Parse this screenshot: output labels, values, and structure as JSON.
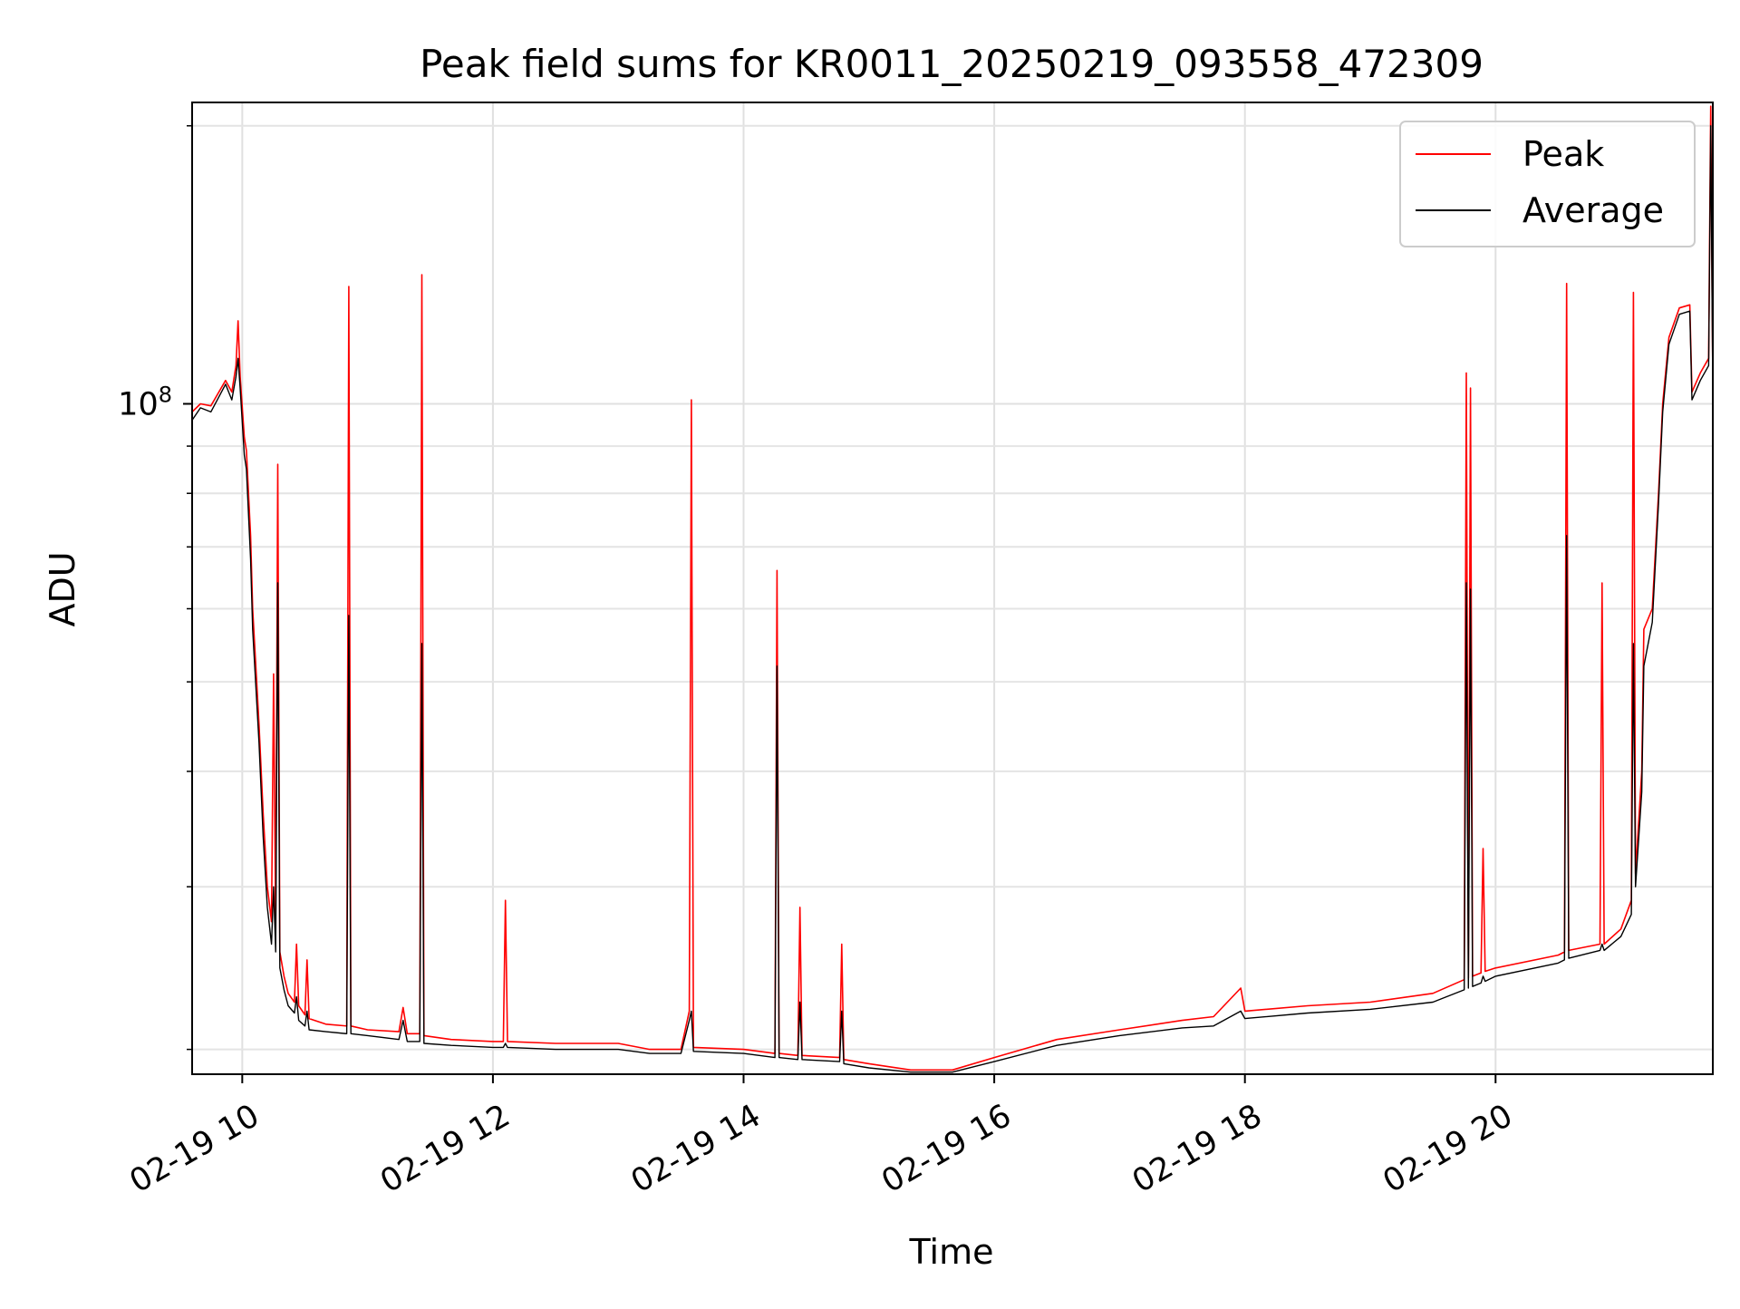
{
  "chart_data": {
    "type": "line",
    "title": "Peak field sums for KR0011_20250219_093558_472309",
    "xlabel": "Time",
    "ylabel": "ADU",
    "y_scale": "log",
    "ylim": [
      18800000,
      212000000
    ],
    "xlim": [
      "2025-02-19 09:36",
      "2025-02-19 21:44"
    ],
    "x_ticks": [
      "2025-02-19 10:00",
      "2025-02-19 12:00",
      "2025-02-19 14:00",
      "2025-02-19 16:00",
      "2025-02-19 18:00",
      "2025-02-19 20:00"
    ],
    "x_tick_labels": [
      "02-19 10",
      "02-19 12",
      "02-19 14",
      "02-19 16",
      "02-19 18",
      "02-19 20"
    ],
    "y_major_tick_labels": [
      {
        "value": 100000000,
        "base": "10",
        "exp": "8"
      }
    ],
    "y_minor_ticks": [
      20000000,
      30000000,
      40000000,
      50000000,
      60000000,
      70000000,
      80000000,
      90000000,
      200000000
    ],
    "grid": true,
    "legend_position": "upper right",
    "series": [
      {
        "name": "Peak",
        "color": "#ff0000",
        "points": [
          [
            "2025-02-19 09:36",
            98000000
          ],
          [
            "2025-02-19 09:40",
            100000000
          ],
          [
            "2025-02-19 09:45",
            99500000
          ],
          [
            "2025-02-19 09:52",
            106000000
          ],
          [
            "2025-02-19 09:55",
            103000000
          ],
          [
            "2025-02-19 09:57",
            110000000
          ],
          [
            "2025-02-19 09:58",
            123000000
          ],
          [
            "2025-02-19 09:59",
            107000000
          ],
          [
            "2025-02-19 10:01",
            92000000
          ],
          [
            "2025-02-19 10:02",
            89000000
          ],
          [
            "2025-02-19 10:04",
            72000000
          ],
          [
            "2025-02-19 10:05",
            60000000
          ],
          [
            "2025-02-19 10:08",
            45000000
          ],
          [
            "2025-02-19 10:10",
            36000000
          ],
          [
            "2025-02-19 10:12",
            30000000
          ],
          [
            "2025-02-19 10:14",
            27500000
          ],
          [
            "2025-02-19 10:15",
            51000000
          ],
          [
            "2025-02-19 10:16",
            27000000
          ],
          [
            "2025-02-19 10:17",
            86000000
          ],
          [
            "2025-02-19 10:18",
            25500000
          ],
          [
            "2025-02-19 10:20",
            24000000
          ],
          [
            "2025-02-19 10:22",
            23000000
          ],
          [
            "2025-02-19 10:25",
            22500000
          ],
          [
            "2025-02-19 10:26",
            26000000
          ],
          [
            "2025-02-19 10:27",
            22300000
          ],
          [
            "2025-02-19 10:30",
            21800000
          ],
          [
            "2025-02-19 10:31",
            25000000
          ],
          [
            "2025-02-19 10:32",
            21600000
          ],
          [
            "2025-02-19 10:40",
            21300000
          ],
          [
            "2025-02-19 10:50",
            21200000
          ],
          [
            "2025-02-19 10:51",
            134000000
          ],
          [
            "2025-02-19 10:52",
            21200000
          ],
          [
            "2025-02-19 11:00",
            21000000
          ],
          [
            "2025-02-19 11:15",
            20900000
          ],
          [
            "2025-02-19 11:17",
            22200000
          ],
          [
            "2025-02-19 11:19",
            20800000
          ],
          [
            "2025-02-19 11:25",
            20800000
          ],
          [
            "2025-02-19 11:26",
            138000000
          ],
          [
            "2025-02-19 11:27",
            20700000
          ],
          [
            "2025-02-19 11:40",
            20500000
          ],
          [
            "2025-02-19 12:00",
            20400000
          ],
          [
            "2025-02-19 12:05",
            20400000
          ],
          [
            "2025-02-19 12:06",
            29000000
          ],
          [
            "2025-02-19 12:07",
            20400000
          ],
          [
            "2025-02-19 12:30",
            20300000
          ],
          [
            "2025-02-19 13:00",
            20300000
          ],
          [
            "2025-02-19 13:15",
            20000000
          ],
          [
            "2025-02-19 13:30",
            20000000
          ],
          [
            "2025-02-19 13:34",
            22000000
          ],
          [
            "2025-02-19 13:35",
            101000000
          ],
          [
            "2025-02-19 13:36",
            20100000
          ],
          [
            "2025-02-19 14:00",
            20000000
          ],
          [
            "2025-02-19 14:15",
            19800000
          ],
          [
            "2025-02-19 14:16",
            66000000
          ],
          [
            "2025-02-19 14:17",
            19800000
          ],
          [
            "2025-02-19 14:26",
            19700000
          ],
          [
            "2025-02-19 14:27",
            28500000
          ],
          [
            "2025-02-19 14:28",
            19700000
          ],
          [
            "2025-02-19 14:46",
            19600000
          ],
          [
            "2025-02-19 14:47",
            26000000
          ],
          [
            "2025-02-19 14:48",
            19500000
          ],
          [
            "2025-02-19 15:00",
            19300000
          ],
          [
            "2025-02-19 15:20",
            19000000
          ],
          [
            "2025-02-19 15:40",
            19000000
          ],
          [
            "2025-02-19 16:00",
            19600000
          ],
          [
            "2025-02-19 16:30",
            20500000
          ],
          [
            "2025-02-19 17:00",
            21000000
          ],
          [
            "2025-02-19 17:30",
            21500000
          ],
          [
            "2025-02-19 17:45",
            21700000
          ],
          [
            "2025-02-19 17:58",
            23300000
          ],
          [
            "2025-02-19 18:00",
            22000000
          ],
          [
            "2025-02-19 18:30",
            22300000
          ],
          [
            "2025-02-19 19:00",
            22500000
          ],
          [
            "2025-02-19 19:30",
            23000000
          ],
          [
            "2025-02-19 19:45",
            23800000
          ],
          [
            "2025-02-19 19:46",
            108000000
          ],
          [
            "2025-02-19 19:47",
            23900000
          ],
          [
            "2025-02-19 19:48",
            104000000
          ],
          [
            "2025-02-19 19:49",
            24000000
          ],
          [
            "2025-02-19 19:53",
            24200000
          ],
          [
            "2025-02-19 19:54",
            33000000
          ],
          [
            "2025-02-19 19:55",
            24300000
          ],
          [
            "2025-02-19 20:00",
            24500000
          ],
          [
            "2025-02-19 20:30",
            25300000
          ],
          [
            "2025-02-19 20:33",
            25500000
          ],
          [
            "2025-02-19 20:34",
            135000000
          ],
          [
            "2025-02-19 20:35",
            25600000
          ],
          [
            "2025-02-19 20:50",
            26000000
          ],
          [
            "2025-02-19 20:51",
            64000000
          ],
          [
            "2025-02-19 20:52",
            26000000
          ],
          [
            "2025-02-19 21:00",
            27000000
          ],
          [
            "2025-02-19 21:05",
            29000000
          ],
          [
            "2025-02-19 21:06",
            132000000
          ],
          [
            "2025-02-19 21:07",
            31000000
          ],
          [
            "2025-02-19 21:10",
            40000000
          ],
          [
            "2025-02-19 21:11",
            57000000
          ],
          [
            "2025-02-19 21:15",
            60000000
          ],
          [
            "2025-02-19 21:18",
            80000000
          ],
          [
            "2025-02-19 21:20",
            100000000
          ],
          [
            "2025-02-19 21:23",
            118000000
          ],
          [
            "2025-02-19 21:28",
            127000000
          ],
          [
            "2025-02-19 21:33",
            128000000
          ],
          [
            "2025-02-19 21:34",
            103000000
          ],
          [
            "2025-02-19 21:38",
            108000000
          ],
          [
            "2025-02-19 21:42",
            112000000
          ],
          [
            "2025-02-19 21:43",
            210000000
          ],
          [
            "2025-02-19 21:44",
            105000000
          ]
        ]
      },
      {
        "name": "Average",
        "color": "#000000",
        "points": [
          [
            "2025-02-19 09:36",
            96000000
          ],
          [
            "2025-02-19 09:40",
            99000000
          ],
          [
            "2025-02-19 09:45",
            98000000
          ],
          [
            "2025-02-19 09:52",
            105000000
          ],
          [
            "2025-02-19 09:55",
            101000000
          ],
          [
            "2025-02-19 09:57",
            107000000
          ],
          [
            "2025-02-19 09:58",
            112000000
          ],
          [
            "2025-02-19 09:59",
            104000000
          ],
          [
            "2025-02-19 10:01",
            88000000
          ],
          [
            "2025-02-19 10:02",
            85000000
          ],
          [
            "2025-02-19 10:04",
            68000000
          ],
          [
            "2025-02-19 10:05",
            57000000
          ],
          [
            "2025-02-19 10:08",
            43000000
          ],
          [
            "2025-02-19 10:10",
            34000000
          ],
          [
            "2025-02-19 10:12",
            28500000
          ],
          [
            "2025-02-19 10:14",
            26000000
          ],
          [
            "2025-02-19 10:15",
            30000000
          ],
          [
            "2025-02-19 10:16",
            25500000
          ],
          [
            "2025-02-19 10:17",
            64000000
          ],
          [
            "2025-02-19 10:18",
            24500000
          ],
          [
            "2025-02-19 10:20",
            23200000
          ],
          [
            "2025-02-19 10:22",
            22300000
          ],
          [
            "2025-02-19 10:25",
            21900000
          ],
          [
            "2025-02-19 10:26",
            22800000
          ],
          [
            "2025-02-19 10:27",
            21500000
          ],
          [
            "2025-02-19 10:30",
            21200000
          ],
          [
            "2025-02-19 10:31",
            22000000
          ],
          [
            "2025-02-19 10:32",
            21000000
          ],
          [
            "2025-02-19 10:40",
            20900000
          ],
          [
            "2025-02-19 10:50",
            20800000
          ],
          [
            "2025-02-19 10:51",
            59000000
          ],
          [
            "2025-02-19 10:52",
            20800000
          ],
          [
            "2025-02-19 11:00",
            20700000
          ],
          [
            "2025-02-19 11:15",
            20500000
          ],
          [
            "2025-02-19 11:17",
            21500000
          ],
          [
            "2025-02-19 11:19",
            20400000
          ],
          [
            "2025-02-19 11:25",
            20400000
          ],
          [
            "2025-02-19 11:26",
            55000000
          ],
          [
            "2025-02-19 11:27",
            20300000
          ],
          [
            "2025-02-19 11:40",
            20200000
          ],
          [
            "2025-02-19 12:00",
            20100000
          ],
          [
            "2025-02-19 12:05",
            20100000
          ],
          [
            "2025-02-19 12:06",
            20300000
          ],
          [
            "2025-02-19 12:07",
            20100000
          ],
          [
            "2025-02-19 12:30",
            20000000
          ],
          [
            "2025-02-19 13:00",
            20000000
          ],
          [
            "2025-02-19 13:15",
            19800000
          ],
          [
            "2025-02-19 13:30",
            19800000
          ],
          [
            "2025-02-19 13:34",
            21500000
          ],
          [
            "2025-02-19 13:35",
            22000000
          ],
          [
            "2025-02-19 13:36",
            19900000
          ],
          [
            "2025-02-19 14:00",
            19800000
          ],
          [
            "2025-02-19 14:15",
            19600000
          ],
          [
            "2025-02-19 14:16",
            52000000
          ],
          [
            "2025-02-19 14:17",
            19600000
          ],
          [
            "2025-02-19 14:26",
            19500000
          ],
          [
            "2025-02-19 14:27",
            22500000
          ],
          [
            "2025-02-19 14:28",
            19500000
          ],
          [
            "2025-02-19 14:46",
            19400000
          ],
          [
            "2025-02-19 14:47",
            22000000
          ],
          [
            "2025-02-19 14:48",
            19300000
          ],
          [
            "2025-02-19 15:00",
            19100000
          ],
          [
            "2025-02-19 15:20",
            18900000
          ],
          [
            "2025-02-19 15:40",
            18900000
          ],
          [
            "2025-02-19 16:00",
            19400000
          ],
          [
            "2025-02-19 16:30",
            20200000
          ],
          [
            "2025-02-19 17:00",
            20700000
          ],
          [
            "2025-02-19 17:30",
            21100000
          ],
          [
            "2025-02-19 17:45",
            21200000
          ],
          [
            "2025-02-19 17:58",
            22000000
          ],
          [
            "2025-02-19 18:00",
            21600000
          ],
          [
            "2025-02-19 18:30",
            21900000
          ],
          [
            "2025-02-19 19:00",
            22100000
          ],
          [
            "2025-02-19 19:30",
            22500000
          ],
          [
            "2025-02-19 19:45",
            23200000
          ],
          [
            "2025-02-19 19:46",
            64000000
          ],
          [
            "2025-02-19 19:47",
            23300000
          ],
          [
            "2025-02-19 19:48",
            63000000
          ],
          [
            "2025-02-19 19:49",
            23400000
          ],
          [
            "2025-02-19 19:53",
            23600000
          ],
          [
            "2025-02-19 19:54",
            24000000
          ],
          [
            "2025-02-19 19:55",
            23700000
          ],
          [
            "2025-02-19 20:00",
            24000000
          ],
          [
            "2025-02-19 20:30",
            24800000
          ],
          [
            "2025-02-19 20:33",
            25000000
          ],
          [
            "2025-02-19 20:34",
            72000000
          ],
          [
            "2025-02-19 20:35",
            25100000
          ],
          [
            "2025-02-19 20:50",
            25600000
          ],
          [
            "2025-02-19 20:51",
            26000000
          ],
          [
            "2025-02-19 20:52",
            25600000
          ],
          [
            "2025-02-19 21:00",
            26500000
          ],
          [
            "2025-02-19 21:05",
            28000000
          ],
          [
            "2025-02-19 21:06",
            55000000
          ],
          [
            "2025-02-19 21:07",
            30000000
          ],
          [
            "2025-02-19 21:10",
            38000000
          ],
          [
            "2025-02-19 21:11",
            52000000
          ],
          [
            "2025-02-19 21:15",
            58000000
          ],
          [
            "2025-02-19 21:18",
            78000000
          ],
          [
            "2025-02-19 21:20",
            98000000
          ],
          [
            "2025-02-19 21:23",
            116000000
          ],
          [
            "2025-02-19 21:28",
            125000000
          ],
          [
            "2025-02-19 21:33",
            126000000
          ],
          [
            "2025-02-19 21:34",
            101000000
          ],
          [
            "2025-02-19 21:38",
            106000000
          ],
          [
            "2025-02-19 21:42",
            110000000
          ],
          [
            "2025-02-19 21:43",
            200000000
          ],
          [
            "2025-02-19 21:44",
            103000000
          ]
        ]
      }
    ]
  }
}
